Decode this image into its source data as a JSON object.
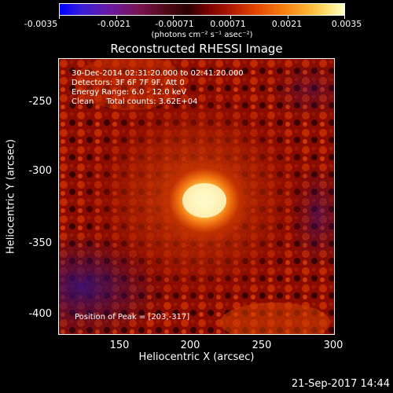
{
  "colorbar": {
    "ticks": [
      "-0.0035",
      "-0.0021",
      "-0.00071",
      "0.00071",
      "0.0021",
      "0.0035"
    ],
    "units": "(photons cm⁻² s⁻¹ asec⁻²)"
  },
  "title": "Reconstructed RHESSI Image",
  "info": {
    "line1": "30-Dec-2014 02:31:20.000 to 02:41:20.000",
    "line2": "Detectors: 3F 6F 7F 9F, Att 0",
    "line3": "Energy Range: 6.0 - 12.0 keV",
    "line4": "Clean     Total counts: 3.62E+04",
    "peak": "Position of Peak = [203,-317]"
  },
  "axes": {
    "xlabel": "Heliocentric X (arcsec)",
    "ylabel": "Heliocentric Y (arcsec)",
    "xticks": [
      "150",
      "200",
      "250",
      "300"
    ],
    "yticks": [
      "-250",
      "-300",
      "-350",
      "-400"
    ]
  },
  "timestamp": "21-Sep-2017 14:44"
}
